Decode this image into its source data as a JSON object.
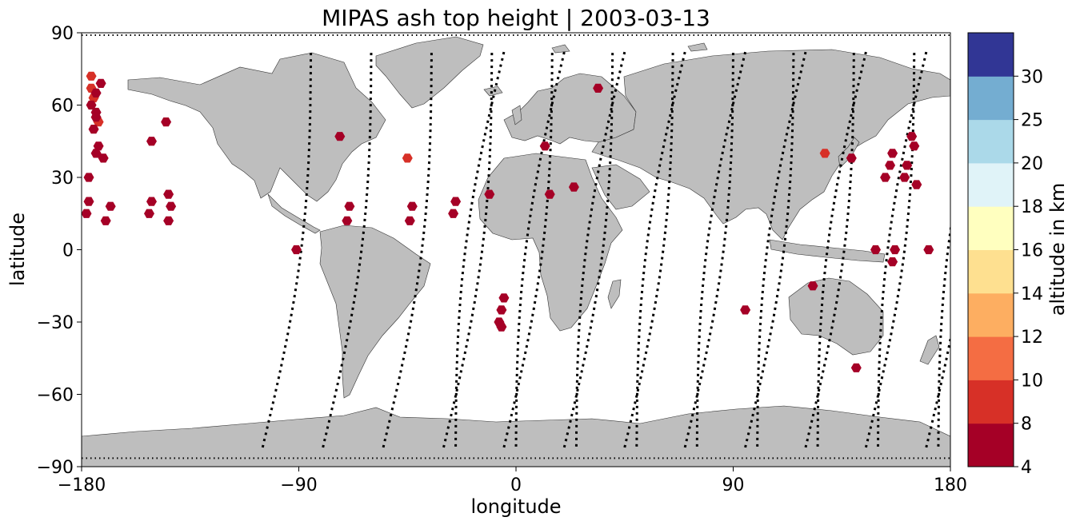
{
  "title": "MIPAS ash top height | 2003-03-13",
  "xlabel": "longitude",
  "ylabel": "latitude",
  "colorbar_label": "altitude in km",
  "chart_data": {
    "type": "scatter",
    "projection": "PlateCarree",
    "xlim": [
      -180,
      180
    ],
    "ylim": [
      -90,
      90
    ],
    "x_ticks": [
      -180,
      -90,
      0,
      90,
      180
    ],
    "y_ticks": [
      -90,
      -60,
      -30,
      0,
      30,
      60,
      90
    ],
    "x_tick_labels": [
      "−180",
      "−90",
      "0",
      "90",
      "180"
    ],
    "y_tick_labels": [
      "−90",
      "−60",
      "−30",
      "0",
      "30",
      "60",
      "90"
    ],
    "grid": false,
    "land_color": "#bebebe",
    "track_color": "#000000",
    "marker": "hexagon",
    "colorbar": {
      "boundaries": [
        4,
        8,
        10,
        12,
        14,
        16,
        18,
        20,
        25,
        30
      ],
      "tick_labels": [
        "4",
        "8",
        "10",
        "12",
        "14",
        "16",
        "18",
        "20",
        "25",
        "30"
      ],
      "colors": [
        "#a50026",
        "#d73027",
        "#f46d43",
        "#fdae61",
        "#fee090",
        "#ffffbf",
        "#e0f3f8",
        "#abd9e9",
        "#74add1",
        "#313695"
      ]
    },
    "ash_points": [
      {
        "lon": -176,
        "lat": 72,
        "alt": 9
      },
      {
        "lon": -176,
        "lat": 67,
        "alt": 9
      },
      {
        "lon": -175,
        "lat": 63,
        "alt": 9
      },
      {
        "lon": -173,
        "lat": 53,
        "alt": 9
      },
      {
        "lon": -174,
        "lat": 65,
        "alt": 6
      },
      {
        "lon": -176,
        "lat": 60,
        "alt": 6
      },
      {
        "lon": -174,
        "lat": 57,
        "alt": 6
      },
      {
        "lon": -174,
        "lat": 55,
        "alt": 6
      },
      {
        "lon": -175,
        "lat": 50,
        "alt": 6
      },
      {
        "lon": -172,
        "lat": 69,
        "alt": 6
      },
      {
        "lon": -173,
        "lat": 43,
        "alt": 6
      },
      {
        "lon": -174,
        "lat": 40,
        "alt": 6
      },
      {
        "lon": -171,
        "lat": 38,
        "alt": 6
      },
      {
        "lon": -177,
        "lat": 30,
        "alt": 6
      },
      {
        "lon": -177,
        "lat": 20,
        "alt": 6
      },
      {
        "lon": -178,
        "lat": 15,
        "alt": 6
      },
      {
        "lon": -168,
        "lat": 18,
        "alt": 6
      },
      {
        "lon": -170,
        "lat": 12,
        "alt": 6
      },
      {
        "lon": -151,
        "lat": 45,
        "alt": 6
      },
      {
        "lon": -145,
        "lat": 53,
        "alt": 6
      },
      {
        "lon": -151,
        "lat": 20,
        "alt": 6
      },
      {
        "lon": -152,
        "lat": 15,
        "alt": 6
      },
      {
        "lon": -144,
        "lat": 23,
        "alt": 6
      },
      {
        "lon": -143,
        "lat": 18,
        "alt": 6
      },
      {
        "lon": -144,
        "lat": 12,
        "alt": 6
      },
      {
        "lon": -73,
        "lat": 47,
        "alt": 6
      },
      {
        "lon": -69,
        "lat": 18,
        "alt": 6
      },
      {
        "lon": -70,
        "lat": 12,
        "alt": 6
      },
      {
        "lon": -91,
        "lat": 0,
        "alt": 6
      },
      {
        "lon": -45,
        "lat": 38,
        "alt": 9
      },
      {
        "lon": -43,
        "lat": 18,
        "alt": 6
      },
      {
        "lon": -44,
        "lat": 12,
        "alt": 6
      },
      {
        "lon": -25,
        "lat": 20,
        "alt": 6
      },
      {
        "lon": -26,
        "lat": 15,
        "alt": 6
      },
      {
        "lon": -11,
        "lat": 23,
        "alt": 6
      },
      {
        "lon": 12,
        "lat": 43,
        "alt": 6
      },
      {
        "lon": 14,
        "lat": 23,
        "alt": 6
      },
      {
        "lon": 24,
        "lat": 26,
        "alt": 6
      },
      {
        "lon": 34,
        "lat": 67,
        "alt": 6
      },
      {
        "lon": -5,
        "lat": -20,
        "alt": 6
      },
      {
        "lon": -6,
        "lat": -25,
        "alt": 6
      },
      {
        "lon": -7,
        "lat": -30,
        "alt": 6
      },
      {
        "lon": -6,
        "lat": -32,
        "alt": 6
      },
      {
        "lon": 95,
        "lat": -25,
        "alt": 6
      },
      {
        "lon": 123,
        "lat": -15,
        "alt": 6
      },
      {
        "lon": 128,
        "lat": 40,
        "alt": 9
      },
      {
        "lon": 139,
        "lat": 38,
        "alt": 6
      },
      {
        "lon": 141,
        "lat": -49,
        "alt": 6
      },
      {
        "lon": 149,
        "lat": 0,
        "alt": 6
      },
      {
        "lon": 155,
        "lat": 35,
        "alt": 6
      },
      {
        "lon": 156,
        "lat": 40,
        "alt": 6
      },
      {
        "lon": 153,
        "lat": 30,
        "alt": 6
      },
      {
        "lon": 156,
        "lat": -5,
        "alt": 6
      },
      {
        "lon": 157,
        "lat": 0,
        "alt": 6
      },
      {
        "lon": 162,
        "lat": 35,
        "alt": 6
      },
      {
        "lon": 161,
        "lat": 30,
        "alt": 6
      },
      {
        "lon": 164,
        "lat": 47,
        "alt": 6
      },
      {
        "lon": 165,
        "lat": 43,
        "alt": 6
      },
      {
        "lon": 166,
        "lat": 27,
        "alt": 6
      },
      {
        "lon": 171,
        "lat": 0,
        "alt": 6
      }
    ]
  }
}
